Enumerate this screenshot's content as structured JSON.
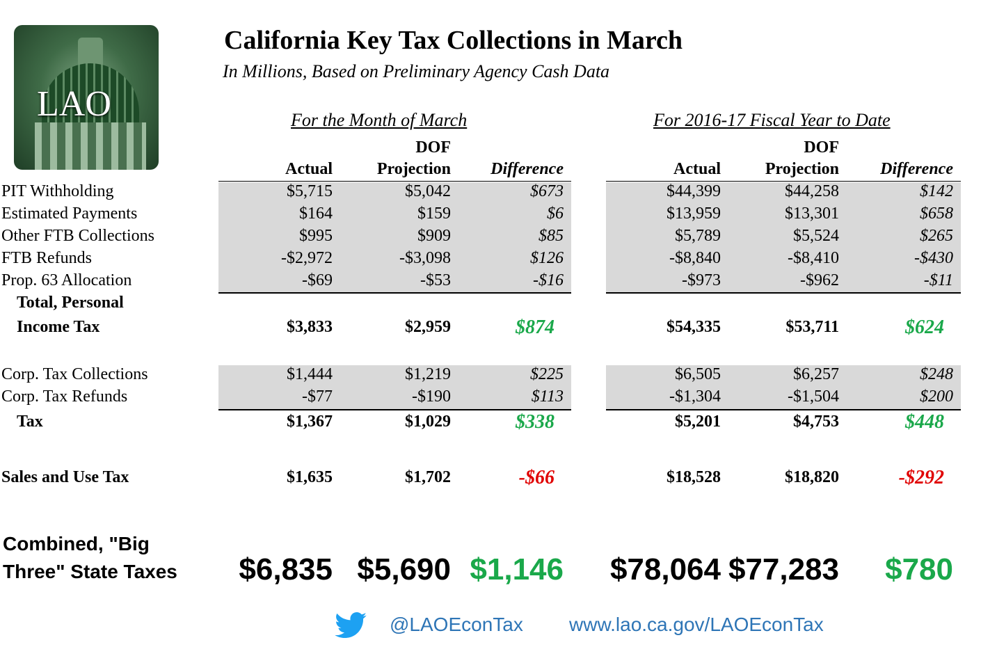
{
  "logo_text": "LAO",
  "title": "California Key Tax Collections in March",
  "subtitle": "In Millions, Based on Preliminary Agency Cash Data",
  "colors": {
    "positive": "#1aa84a",
    "negative": "#e00000",
    "band": "#d9d9d9",
    "link": "#2e75b6",
    "twitter": "#1da1f2"
  },
  "chart_data": {
    "type": "table",
    "sections": [
      "For the Month of March",
      "For 2016-17 Fiscal Year to Date"
    ],
    "column_headers": [
      {
        "top": "",
        "bottom": "Actual"
      },
      {
        "top": "DOF",
        "bottom": "Projection"
      },
      {
        "top": "",
        "bottom": "Difference"
      }
    ],
    "rows": [
      {
        "label": "PIT Withholding",
        "style": "detail",
        "values": [
          "$5,715",
          "$5,042",
          "$673",
          "$44,399",
          "$44,258",
          "$142"
        ]
      },
      {
        "label": "Estimated Payments",
        "style": "detail",
        "values": [
          "$164",
          "$159",
          "$6",
          "$13,959",
          "$13,301",
          "$658"
        ]
      },
      {
        "label": "Other FTB Collections",
        "style": "detail",
        "values": [
          "$995",
          "$909",
          "$85",
          "$5,789",
          "$5,524",
          "$265"
        ]
      },
      {
        "label": "FTB Refunds",
        "style": "detail",
        "values": [
          "-$2,972",
          "-$3,098",
          "$126",
          "-$8,840",
          "-$8,410",
          "-$430"
        ]
      },
      {
        "label": "Prop. 63 Allocation",
        "style": "detail",
        "values": [
          "-$69",
          "-$53",
          "-$16",
          "-$973",
          "-$962",
          "-$11"
        ]
      },
      {
        "label": "Total, Personal",
        "label2": "Income Tax",
        "style": "total",
        "values": [
          "$3,833",
          "$2,959",
          "$874",
          "$54,335",
          "$53,711",
          "$624"
        ],
        "diff_sign": [
          "positive",
          "positive"
        ]
      },
      {
        "label": "Corp. Tax Collections",
        "style": "detail",
        "values": [
          "$1,444",
          "$1,219",
          "$225",
          "$6,505",
          "$6,257",
          "$248"
        ]
      },
      {
        "label": "Corp. Tax Refunds",
        "style": "detail",
        "values": [
          "-$77",
          "-$190",
          "$113",
          "-$1,304",
          "-$1,504",
          "$200"
        ]
      },
      {
        "label": "Tax",
        "style": "total",
        "values": [
          "$1,367",
          "$1,029",
          "$338",
          "$5,201",
          "$4,753",
          "$448"
        ],
        "diff_sign": [
          "positive",
          "positive"
        ]
      },
      {
        "label": "Sales and Use Tax",
        "style": "total",
        "values": [
          "$1,635",
          "$1,702",
          "-$66",
          "$18,528",
          "$18,820",
          "-$292"
        ],
        "diff_sign": [
          "negative",
          "negative"
        ]
      },
      {
        "label": "Combined, \"Big",
        "label2": "Three\" State Taxes",
        "style": "grand",
        "values": [
          "$6,835",
          "$5,690",
          "$1,146",
          "$78,064",
          "$77,283",
          "$780"
        ],
        "diff_sign": [
          "positive",
          "positive"
        ]
      }
    ]
  },
  "footer": {
    "twitter_icon": "twitter-bird-icon",
    "handle": "@LAOEconTax",
    "url": "www.lao.ca.gov/LAOEconTax"
  }
}
